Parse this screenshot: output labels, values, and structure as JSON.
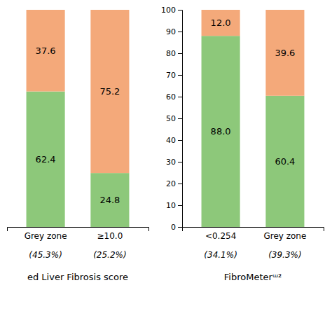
{
  "chart_data": [
    {
      "type": "bar",
      "stacked": true,
      "data_labels": true,
      "grid": false,
      "tick_labels": "x",
      "categories": [
        "Grey zone",
        "≥10.0"
      ],
      "series": [
        {
          "color": "#8dc87a",
          "values": [
            62.4,
            24.8
          ],
          "value_labels": [
            "62.4",
            "24.8"
          ]
        },
        {
          "color": "#f4a97a",
          "values": [
            37.6,
            75.2
          ],
          "value_labels": [
            "37.6",
            "75.2"
          ]
        }
      ],
      "annotations": [
        "(45.3%)",
        "(25.2%)"
      ],
      "xlabel": "ed Liver Fibrosis score",
      "ylim": [
        0,
        100
      ]
    },
    {
      "type": "bar",
      "stacked": true,
      "data_labels": true,
      "grid": false,
      "categories": [
        "<0.254",
        "Grey zone"
      ],
      "series": [
        {
          "color": "#8dc87a",
          "values": [
            88.0,
            60.4
          ],
          "value_labels": [
            "88.0",
            "60.4"
          ]
        },
        {
          "color": "#f4a97a",
          "values": [
            12.0,
            39.6
          ],
          "value_labels": [
            "12.0",
            "39.6"
          ]
        }
      ],
      "annotations": [
        "(34.1%)",
        "(39.3%)"
      ],
      "xlabel": "FibroMeterᵚ²",
      "ylim": [
        0,
        100
      ],
      "yticks": [
        0,
        10,
        20,
        30,
        40,
        50,
        60,
        70,
        80,
        90,
        100
      ]
    }
  ]
}
